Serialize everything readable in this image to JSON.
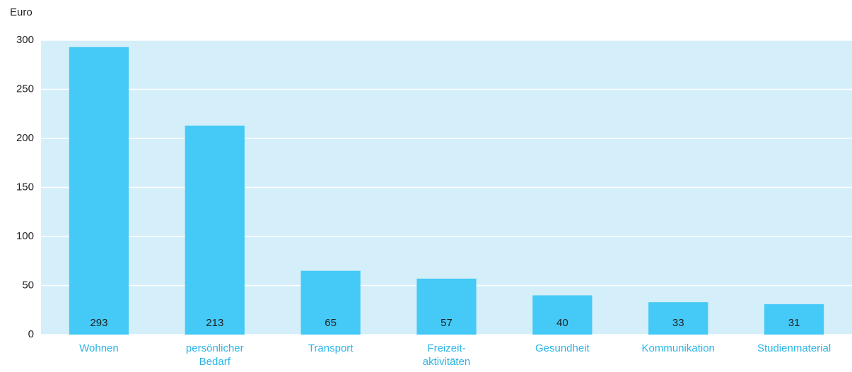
{
  "chart_data": {
    "type": "bar",
    "y_label": "Euro",
    "categories": [
      "Wohnen",
      "persönlicher Bedarf",
      "Transport",
      "Freizeit-aktivitäten",
      "Gesundheit",
      "Kommunikation",
      "Studienmaterial"
    ],
    "values": [
      293,
      213,
      65,
      57,
      40,
      33,
      31
    ],
    "color": "#45c9f6",
    "ylim": [
      0,
      300
    ],
    "yticks": [
      0,
      50,
      100,
      150,
      200,
      250,
      300
    ],
    "grid": true
  }
}
